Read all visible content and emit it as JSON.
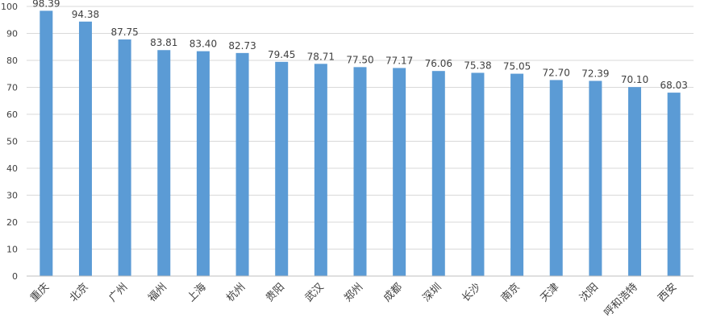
{
  "chart_data": {
    "type": "bar",
    "title": "",
    "xlabel": "",
    "ylabel": "",
    "ylim": [
      0,
      100
    ],
    "yticks": [
      0,
      10,
      20,
      30,
      40,
      50,
      60,
      70,
      80,
      90,
      100
    ],
    "grid": true,
    "legend": "none",
    "colors": {
      "bar": "#5b9bd5",
      "grid": "#d9d9d9",
      "axis": "#bfbfbf",
      "text": "#404040"
    },
    "categories": [
      "重庆",
      "北京",
      "广州",
      "福州",
      "上海",
      "杭州",
      "贵阳",
      "武汉",
      "郑州",
      "成都",
      "深圳",
      "长沙",
      "南京",
      "天津",
      "沈阳",
      "呼和浩特",
      "西安"
    ],
    "values": [
      98.39,
      94.38,
      87.75,
      83.81,
      83.4,
      82.73,
      79.45,
      78.71,
      77.5,
      77.17,
      76.06,
      75.38,
      75.05,
      72.7,
      72.39,
      70.1,
      68.03
    ],
    "value_labels": [
      "98.39",
      "94.38",
      "87.75",
      "83.81",
      "83.40",
      "82.73",
      "79.45",
      "78.71",
      "77.50",
      "77.17",
      "76.06",
      "75.38",
      "75.05",
      "72.70",
      "72.39",
      "70.10",
      "68.03"
    ]
  }
}
